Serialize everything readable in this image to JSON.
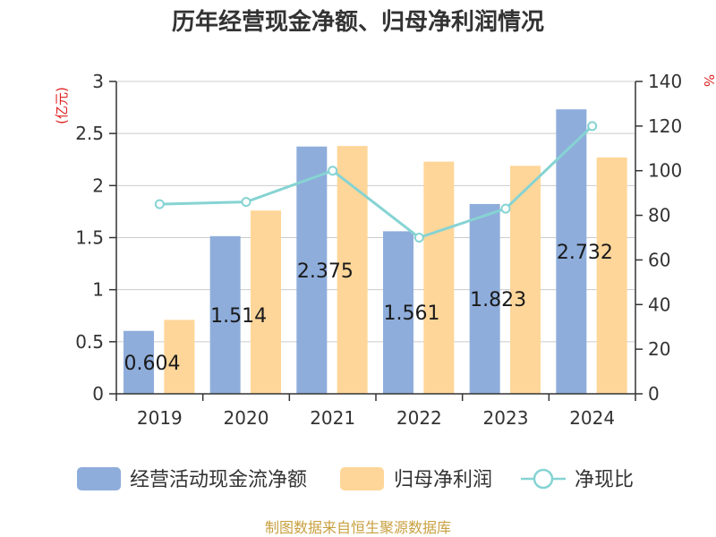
{
  "chart_data": {
    "type": "bar+line",
    "title": "历年经营现金净额、归母净利润情况",
    "categories": [
      "2019",
      "2020",
      "2021",
      "2022",
      "2023",
      "2024"
    ],
    "series": [
      {
        "name": "经营活动现金流净额",
        "kind": "bar",
        "axis": "left",
        "values": [
          0.604,
          1.514,
          2.375,
          1.561,
          1.823,
          2.732
        ],
        "labels": [
          "0.604",
          "1.514",
          "2.375",
          "1.561",
          "1.823",
          "2.732"
        ],
        "color": "#8EADDB"
      },
      {
        "name": "归母净利润",
        "kind": "bar",
        "axis": "left",
        "values": [
          0.71,
          1.76,
          2.38,
          2.23,
          2.19,
          2.27
        ],
        "color": "#FFD699"
      },
      {
        "name": "净现比",
        "kind": "line",
        "axis": "right",
        "values": [
          85,
          86,
          100,
          70,
          83,
          120
        ],
        "color": "#86D3D3"
      }
    ],
    "y_left": {
      "label": "(亿元)",
      "min": 0,
      "max": 3,
      "ticks": [
        0,
        0.5,
        1,
        1.5,
        2,
        2.5,
        3
      ],
      "tick_labels": [
        "0",
        "0.5",
        "1",
        "1.5",
        "2",
        "2.5",
        "3"
      ]
    },
    "y_right": {
      "label": "%",
      "min": 0,
      "max": 140,
      "ticks": [
        0,
        20,
        40,
        60,
        80,
        100,
        120,
        140
      ],
      "tick_labels": [
        "0",
        "20",
        "40",
        "60",
        "80",
        "100",
        "120",
        "140"
      ]
    },
    "grid": true,
    "legend_position": "bottom",
    "source": "制图数据来自恒生聚源数据库"
  },
  "colors": {
    "axis": "#333333",
    "grid": "#cccccc",
    "unit_label": "#e02020",
    "source": "#c8a040",
    "title": "#333333"
  }
}
